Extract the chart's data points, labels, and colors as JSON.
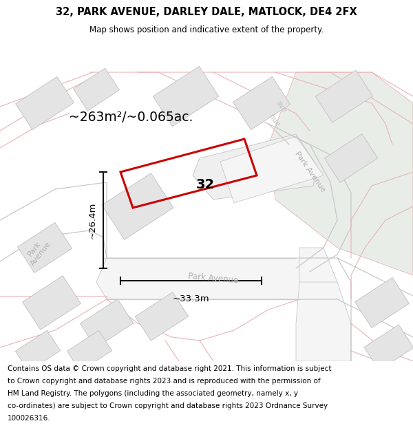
{
  "title": "32, PARK AVENUE, DARLEY DALE, MATLOCK, DE4 2FX",
  "subtitle": "Map shows position and indicative extent of the property.",
  "area_label": "~263m²/~0.065ac.",
  "width_label": "~33.3m",
  "height_label": "~26.4m",
  "number_label": "32",
  "map_bg": "#f2f2f2",
  "road_fill": "#ffffff",
  "road_edge_color": "#e8b4b8",
  "road_grey_color": "#c8c8c8",
  "building_fill": "#e4e4e4",
  "building_edge": "#c0c0c0",
  "green_fill": "#e8ede8",
  "highlight_stroke": "#cc0000",
  "highlight_lw": 2.2,
  "dim_color": "#111111",
  "road_label_color": "#b0b0b0",
  "footer_lines": [
    "Contains OS data © Crown copyright and database right 2021. This information is subject",
    "to Crown copyright and database rights 2023 and is reproduced with the permission of",
    "HM Land Registry. The polygons (including the associated geometry, namely x, y",
    "co-ordinates) are subject to Crown copyright and database rights 2023 Ordnance Survey",
    "100026316."
  ]
}
